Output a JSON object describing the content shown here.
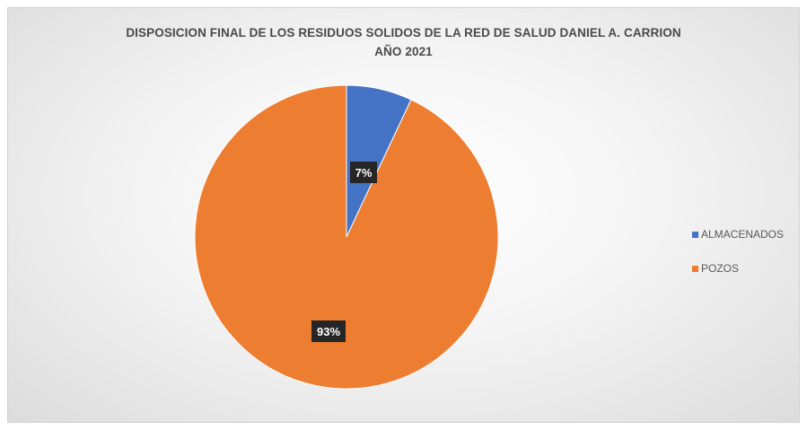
{
  "chart_data": {
    "type": "pie",
    "title_lines": [
      "DISPOSICION FINAL DE LOS RESIDUOS SOLIDOS DE LA RED DE SALUD DANIEL A. CARRION",
      "AÑO 2021"
    ],
    "categories": [
      "ALMACENADOS",
      "POZOS"
    ],
    "values": [
      7,
      93
    ],
    "data_labels": [
      "7%",
      "93%"
    ],
    "colors": [
      "#4472C4",
      "#ED7D31"
    ],
    "legend_position": "right"
  }
}
